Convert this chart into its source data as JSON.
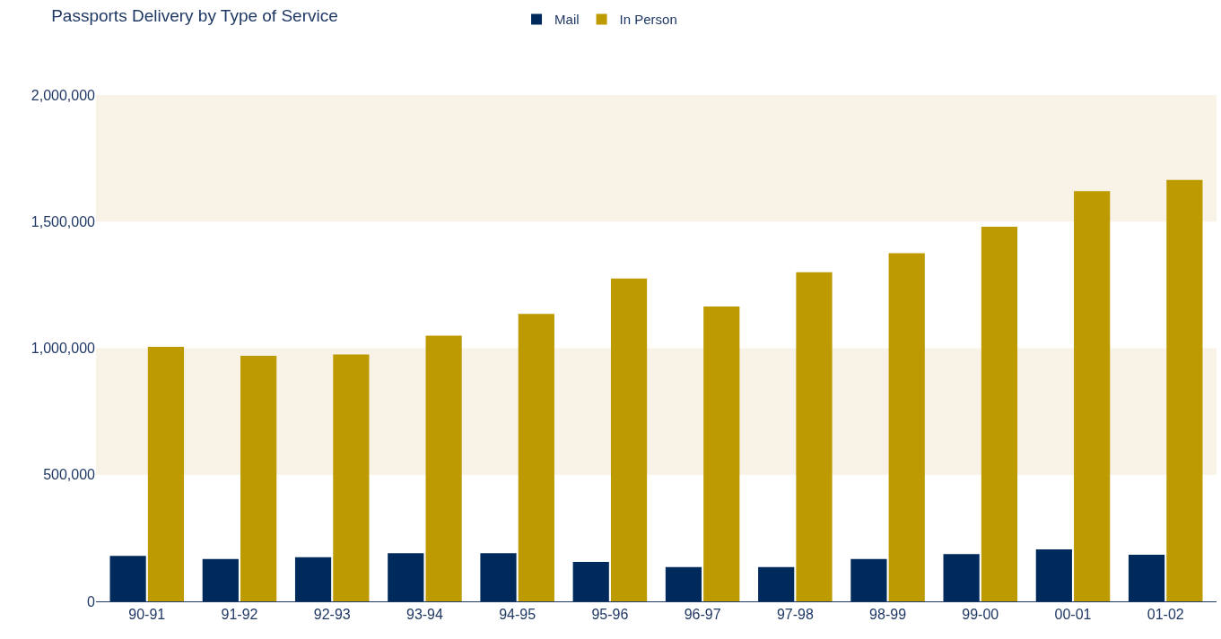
{
  "chart_data": {
    "type": "bar",
    "title": "Passports Delivery by Type of Service",
    "categories": [
      "90-91",
      "91-92",
      "92-93",
      "93-94",
      "94-95",
      "95-96",
      "96-97",
      "97-98",
      "98-99",
      "99-00",
      "00-01",
      "01-02"
    ],
    "series": [
      {
        "name": "Mail",
        "color": "#002a5c",
        "values": [
          180000,
          167000,
          174000,
          190000,
          190000,
          156000,
          135000,
          135000,
          167000,
          187000,
          205000,
          184000
        ]
      },
      {
        "name": "In Person",
        "color": "#bd9a00",
        "values": [
          1005000,
          970000,
          975000,
          1050000,
          1135000,
          1275000,
          1165000,
          1300000,
          1375000,
          1480000,
          1620000,
          1665000
        ]
      }
    ],
    "ylim": [
      0,
      2000000
    ],
    "yticks": [
      {
        "value": 0,
        "label": "0"
      },
      {
        "value": 500000,
        "label": "500,000"
      },
      {
        "value": 1000000,
        "label": "1,000,000"
      },
      {
        "value": 1500000,
        "label": "1,500,000"
      },
      {
        "value": 2000000,
        "label": "2,000,000"
      }
    ],
    "bands": [
      {
        "axis": "y",
        "from": 500000,
        "to": 1000000,
        "color": "#f9f2e6"
      },
      {
        "axis": "y",
        "from": 1500000,
        "to": 2000000,
        "color": "#f9f2e6"
      }
    ],
    "grid": false,
    "legend": "top"
  }
}
